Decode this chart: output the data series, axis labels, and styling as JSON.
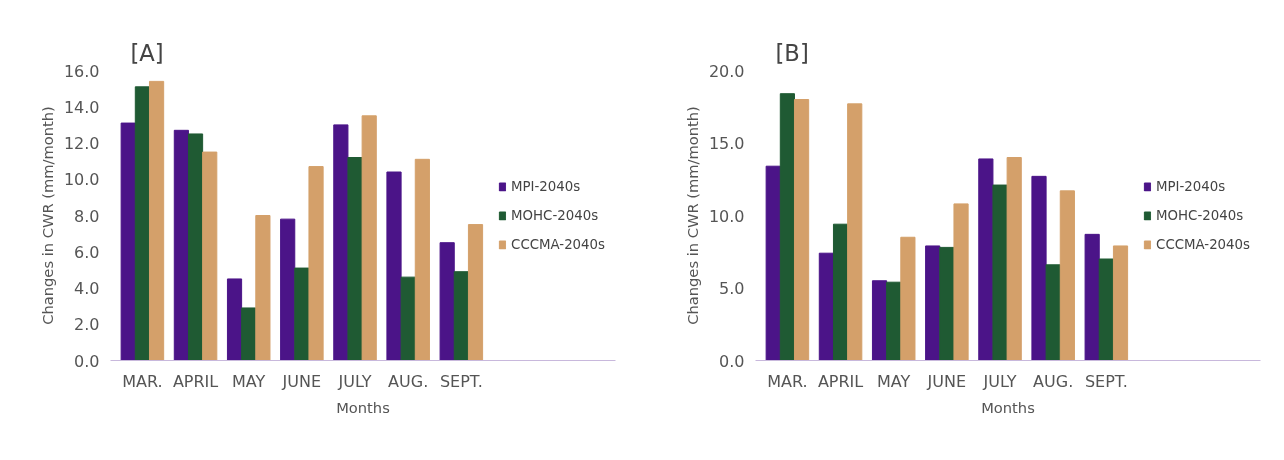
{
  "chart_data": [
    {
      "type": "bar",
      "title": "[A]",
      "xlabel": "Months",
      "ylabel": "Changes in CWR (mm/month)",
      "categories": [
        "MAR.",
        "APRIL",
        "MAY",
        "JUNE",
        "JULY",
        "AUG.",
        "SEPT."
      ],
      "ylim": [
        0,
        16
      ],
      "yticks": [
        {
          "value": 0,
          "label": "0.0"
        },
        {
          "value": 2,
          "label": "2.0"
        },
        {
          "value": 4,
          "label": "4.0"
        },
        {
          "value": 6,
          "label": "6.0"
        },
        {
          "value": 8,
          "label": "8.0"
        },
        {
          "value": 10,
          "label": "10.0"
        },
        {
          "value": 12,
          "label": "12.0"
        },
        {
          "value": 14,
          "label": "14.0"
        },
        {
          "value": 16,
          "label": "16.0"
        }
      ],
      "grid": false,
      "legend": "right",
      "series": [
        {
          "name": "MPI-2040s",
          "color": "#4b1488",
          "values": [
            13.1,
            12.7,
            4.5,
            7.8,
            13.0,
            10.4,
            6.5
          ]
        },
        {
          "name": "MOHC-2040s",
          "color": "#1f5a33",
          "values": [
            15.1,
            12.5,
            2.9,
            5.1,
            11.2,
            4.6,
            4.9
          ]
        },
        {
          "name": "CCCMA-2040s",
          "color": "#d4a06a",
          "values": [
            15.4,
            11.5,
            8.0,
            10.7,
            13.5,
            11.1,
            7.5
          ]
        }
      ]
    },
    {
      "type": "bar",
      "title": "[B]",
      "xlabel": "Months",
      "ylabel": "Changes in CWR (mm/month)",
      "categories": [
        "MAR.",
        "APRIL",
        "MAY",
        "JUNE",
        "JULY",
        "AUG.",
        "SEPT."
      ],
      "ylim": [
        0,
        20
      ],
      "yticks": [
        {
          "value": 0,
          "label": "0.0"
        },
        {
          "value": 5,
          "label": "5.0"
        },
        {
          "value": 10,
          "label": "10.0"
        },
        {
          "value": 15,
          "label": "15.0"
        },
        {
          "value": 20,
          "label": "20.0"
        }
      ],
      "grid": false,
      "legend": "right",
      "series": [
        {
          "name": "MPI-2040s",
          "color": "#4b1488",
          "values": [
            13.4,
            7.4,
            5.5,
            7.9,
            13.9,
            12.7,
            8.7
          ]
        },
        {
          "name": "MOHC-2040s",
          "color": "#1f5a33",
          "values": [
            18.4,
            9.4,
            5.4,
            7.8,
            12.1,
            6.6,
            7.0
          ]
        },
        {
          "name": "CCCMA-2040s",
          "color": "#d4a06a",
          "values": [
            18.0,
            17.7,
            8.5,
            10.8,
            14.0,
            11.7,
            7.9
          ]
        }
      ]
    }
  ]
}
